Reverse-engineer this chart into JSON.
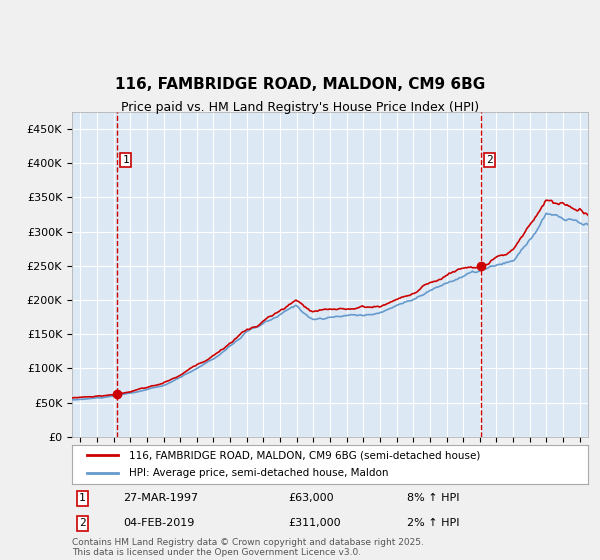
{
  "title": "116, FAMBRIDGE ROAD, MALDON, CM9 6BG",
  "subtitle": "Price paid vs. HM Land Registry's House Price Index (HPI)",
  "ylabel": "",
  "background_color": "#dce9f5",
  "plot_bg_color": "#dce9f5",
  "grid_color": "#ffffff",
  "line_color_red": "#cc0000",
  "line_color_blue": "#6699cc",
  "purchase1_date": "27-MAR-1997",
  "purchase1_price": 63000,
  "purchase1_label": "8% ↑ HPI",
  "purchase1_year": 1997.23,
  "purchase2_date": "04-FEB-2019",
  "purchase2_price": 311000,
  "purchase2_label": "2% ↑ HPI",
  "purchase2_year": 2019.09,
  "legend_line1": "116, FAMBRIDGE ROAD, MALDON, CM9 6BG (semi-detached house)",
  "legend_line2": "HPI: Average price, semi-detached house, Maldon",
  "footer": "Contains HM Land Registry data © Crown copyright and database right 2025.\nThis data is licensed under the Open Government Licence v3.0.",
  "ylim": [
    0,
    475000
  ],
  "xlim_start": 1994.5,
  "xlim_end": 2025.5
}
